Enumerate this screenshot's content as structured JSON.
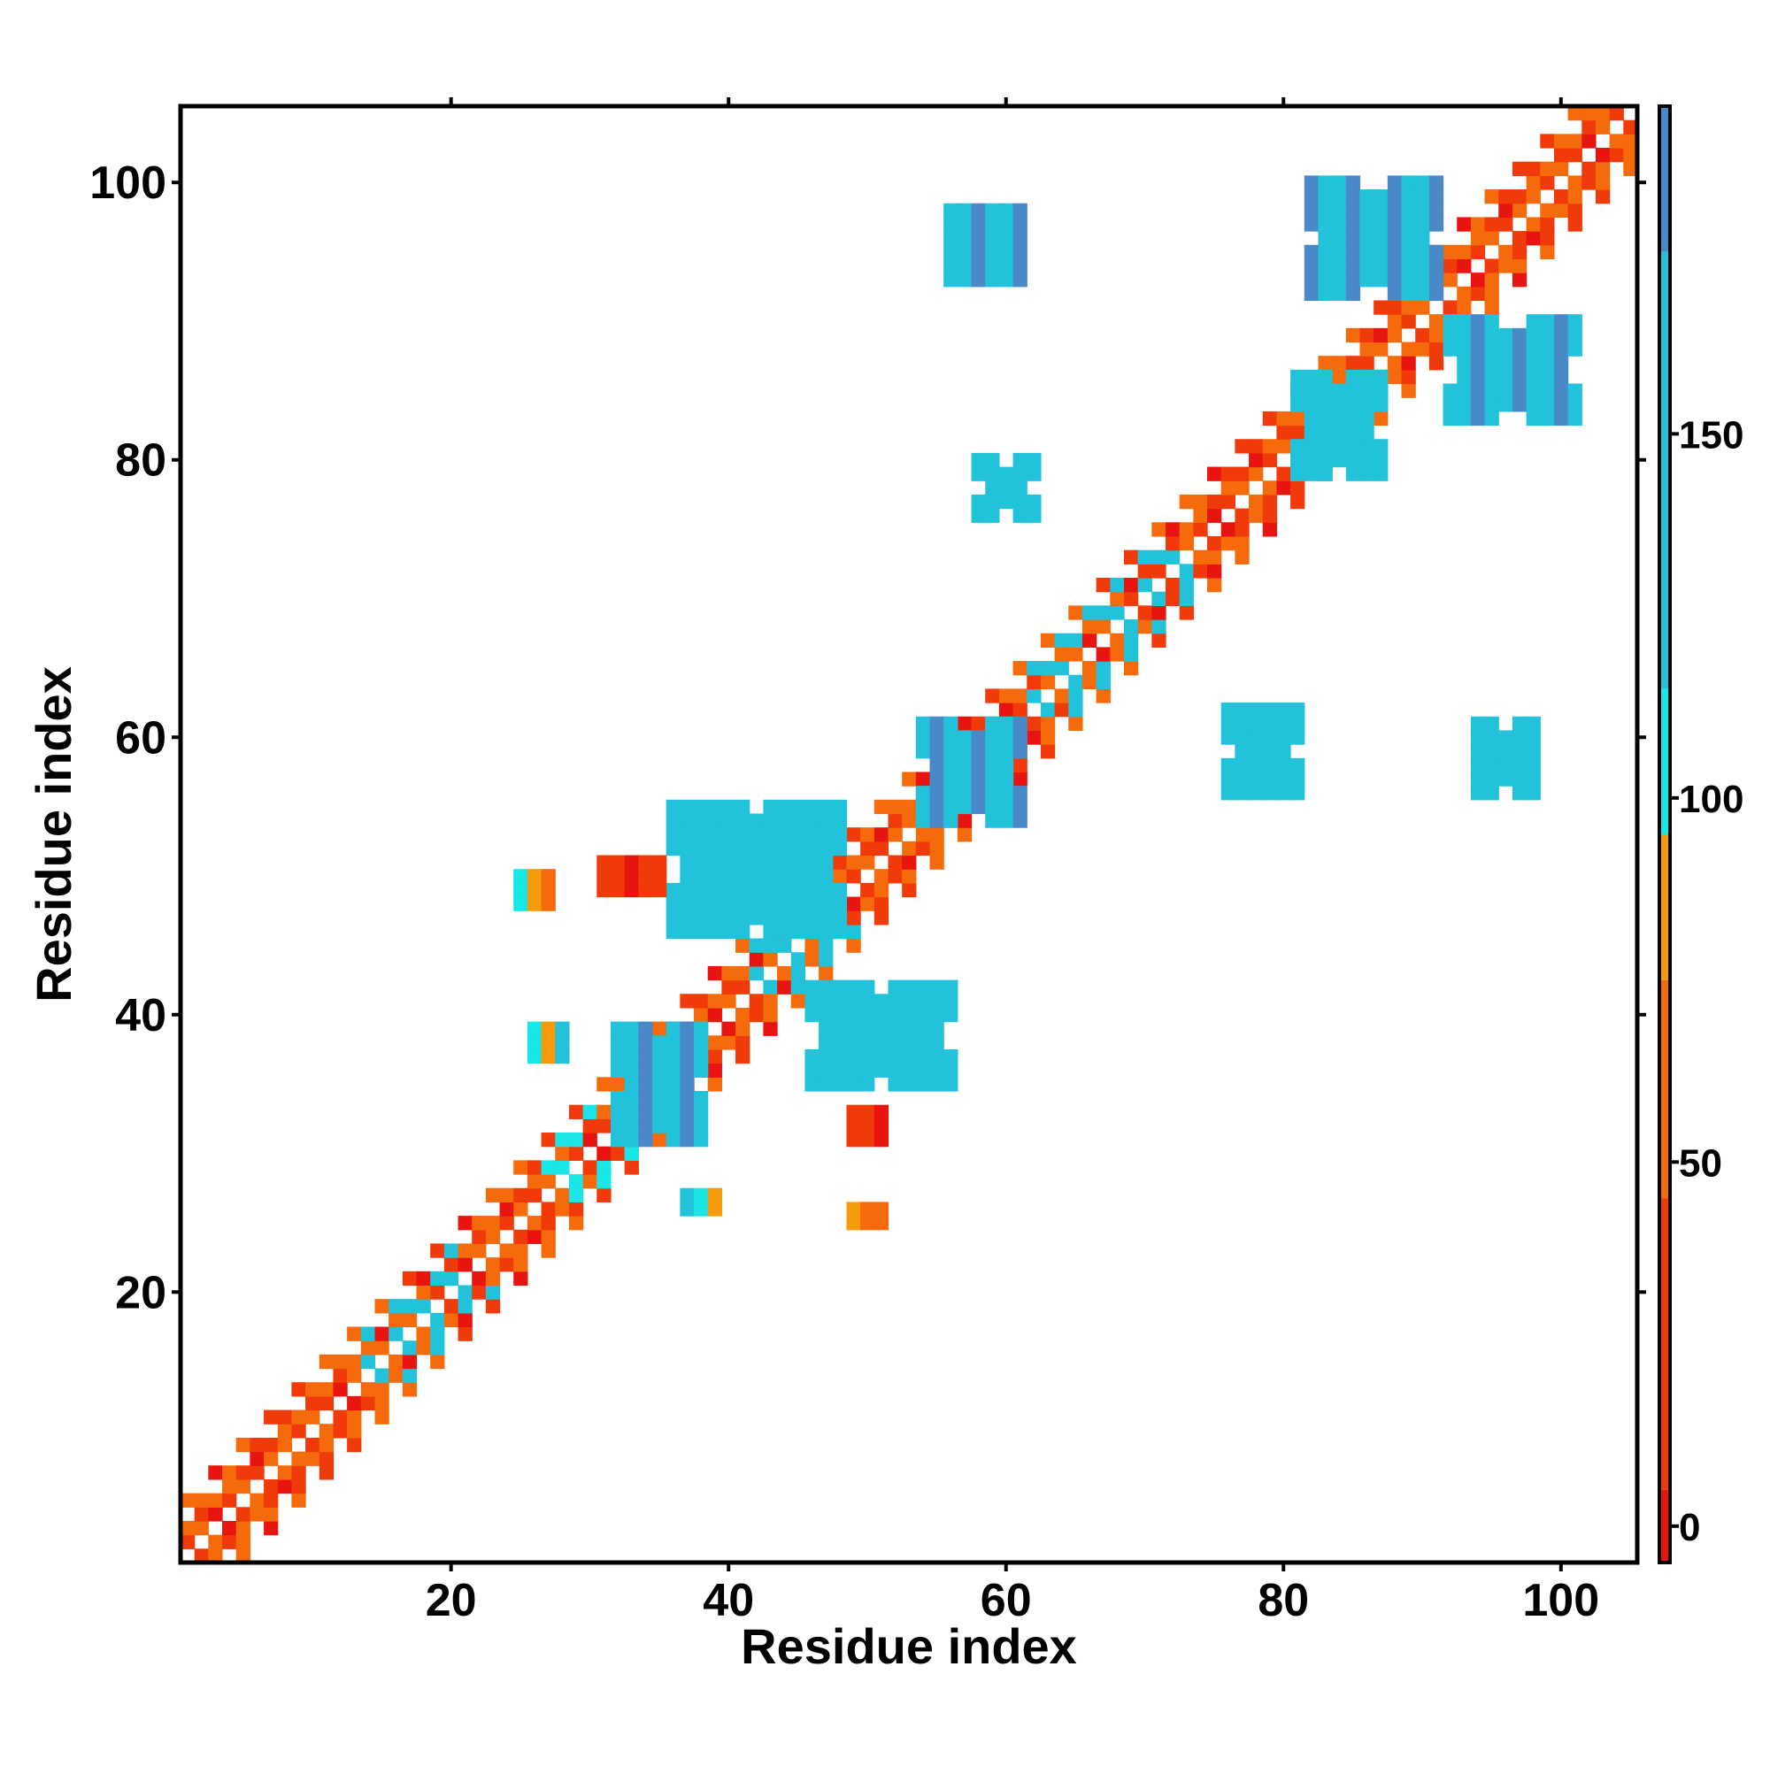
{
  "chart_data": {
    "type": "heatmap",
    "title": "",
    "xlabel": "Residue index",
    "ylabel": "Residue index",
    "xlim": [
      0.5,
      105.5
    ],
    "ylim": [
      0.5,
      105.5
    ],
    "x_ticks": [
      20,
      40,
      60,
      80,
      100
    ],
    "y_ticks": [
      20,
      40,
      60,
      80,
      100
    ],
    "colorbar": {
      "range": [
        -5,
        195
      ],
      "ticks": [
        0,
        50,
        100,
        150
      ],
      "segments": [
        {
          "from": -5,
          "to": 5,
          "color": "#e8140f"
        },
        {
          "from": 5,
          "to": 45,
          "color": "#f03a0a"
        },
        {
          "from": 45,
          "to": 75,
          "color": "#f56b0c"
        },
        {
          "from": 75,
          "to": 95,
          "color": "#f59a0a"
        },
        {
          "from": 95,
          "to": 115,
          "color": "#19e6e6"
        },
        {
          "from": 115,
          "to": 175,
          "color": "#22c3da"
        },
        {
          "from": 175,
          "to": 195,
          "color": "#4a89c8"
        }
      ],
      "top_color": "#ffffff"
    },
    "grid": false,
    "legend": "colorbar at right",
    "cells": [
      {
        "region": "diagonal band",
        "from": [
          1,
          1
        ],
        "to": [
          105,
          105
        ],
        "value": 50
      },
      {
        "region": "diagonal band",
        "from": [
          14,
          14
        ],
        "to": [
          20,
          20
        ],
        "value": 135
      },
      {
        "region": "diagonal band",
        "from": [
          27,
          27
        ],
        "to": [
          30,
          30
        ],
        "value": 100
      },
      {
        "region": "diagonal band",
        "from": [
          42,
          42
        ],
        "to": [
          46,
          46
        ],
        "value": 130
      },
      {
        "region": "diagonal band",
        "from": [
          62,
          62
        ],
        "to": [
          72,
          72
        ],
        "value": 120
      },
      {
        "region": "contact block",
        "x": [
          32,
          38
        ],
        "y": [
          31,
          39
        ],
        "value": 160
      },
      {
        "region": "contact block",
        "x": [
          36,
          48
        ],
        "y": [
          46,
          55
        ],
        "value": 150
      },
      {
        "region": "contact block",
        "x": [
          46,
          56
        ],
        "y": [
          35,
          42
        ],
        "value": 150
      },
      {
        "region": "contact block",
        "x": [
          54,
          61
        ],
        "y": [
          54,
          61
        ],
        "value": 160
      },
      {
        "region": "contact block",
        "x": [
          56,
          61
        ],
        "y": [
          93,
          98
        ],
        "value": 160
      },
      {
        "region": "contact block",
        "x": [
          58,
          62
        ],
        "y": [
          76,
          80
        ],
        "value": 150
      },
      {
        "region": "contact block",
        "x": [
          76,
          81
        ],
        "y": [
          56,
          62
        ],
        "value": 150
      },
      {
        "region": "contact block",
        "x": [
          94,
          98
        ],
        "y": [
          56,
          61
        ],
        "value": 150
      },
      {
        "region": "contact block",
        "x": [
          82,
          91
        ],
        "y": [
          92,
          100
        ],
        "value": 155
      },
      {
        "region": "contact block",
        "x": [
          92,
          101
        ],
        "y": [
          83,
          90
        ],
        "value": 155
      },
      {
        "region": "contact block",
        "x": [
          81,
          87
        ],
        "y": [
          79,
          86
        ],
        "value": 150
      },
      {
        "region": "contact block",
        "x": [
          31,
          35
        ],
        "y": [
          49,
          51
        ],
        "value": 20
      },
      {
        "region": "contact block",
        "x": [
          49,
          51
        ],
        "y": [
          31,
          33
        ],
        "value": 20
      },
      {
        "region": "contact block",
        "x": [
          26,
          28
        ],
        "y": [
          37,
          39
        ],
        "value": 100
      },
      {
        "region": "contact block",
        "x": [
          37,
          39
        ],
        "y": [
          26,
          27
        ],
        "value": 110
      },
      {
        "region": "contact block",
        "x": [
          49,
          51
        ],
        "y": [
          25,
          26
        ],
        "value": 70
      },
      {
        "region": "contact block",
        "x": [
          25,
          27
        ],
        "y": [
          48,
          50
        ],
        "value": 90
      }
    ]
  }
}
